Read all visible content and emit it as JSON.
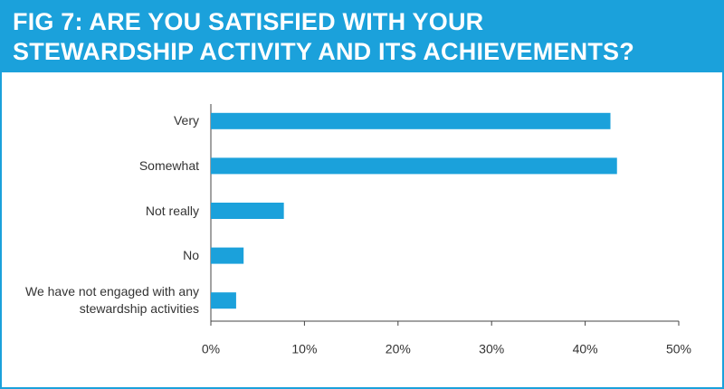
{
  "chart_data": {
    "type": "bar",
    "orientation": "horizontal",
    "title": "FIG 7: ARE YOU SATISFIED WITH YOUR STEWARDSHIP ACTIVITY AND ITS ACHIEVEMENTS?",
    "categories": [
      "Very",
      "Somewhat",
      "Not really",
      "No",
      "We have not engaged with any stewardship activities"
    ],
    "values": [
      42.7,
      43.4,
      7.8,
      3.5,
      2.7
    ],
    "color": "#1ba1db",
    "xlim": [
      0,
      50
    ],
    "xticks": [
      {
        "value": 0,
        "label": "0%"
      },
      {
        "value": 10,
        "label": "10%"
      },
      {
        "value": 20,
        "label": "20%"
      },
      {
        "value": 30,
        "label": "30%"
      },
      {
        "value": 40,
        "label": "40%"
      },
      {
        "value": 50,
        "label": "50%"
      }
    ],
    "grid": false
  }
}
